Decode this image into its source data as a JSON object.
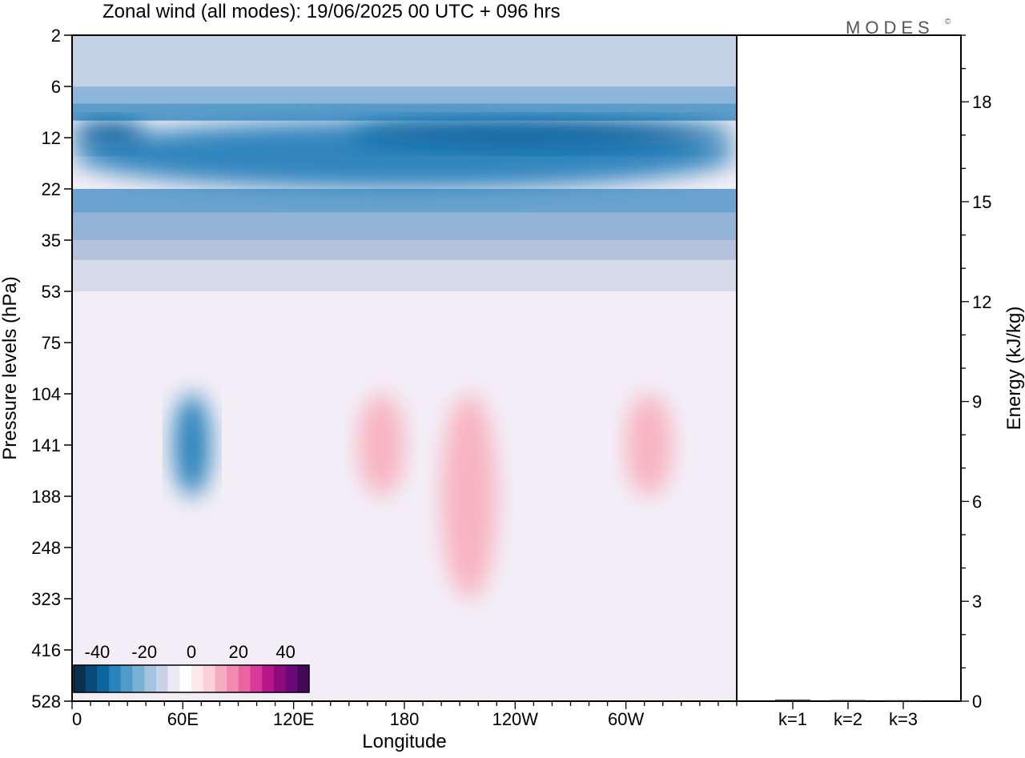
{
  "chart_data": [
    {
      "type": "heatmap",
      "title": "Zonal wind (all modes):  19/06/2025  00 UTC  + 096 hrs",
      "xlabel": "Longitude",
      "ylabel": "Pressure levels (hPa)",
      "x_ticks": [
        "0",
        "60E",
        "120E",
        "180",
        "120W",
        "60W"
      ],
      "x_tick_values": [
        0,
        60,
        120,
        180,
        240,
        300
      ],
      "xlim": [
        0,
        360
      ],
      "y_ticks": [
        "2",
        "6",
        "12",
        "22",
        "35",
        "53",
        "75",
        "104",
        "141",
        "188",
        "248",
        "323",
        "416",
        "528"
      ],
      "y_scale": "categorical pressure levels, top to bottom",
      "colorbar": {
        "ticks": [
          "-40",
          "-20",
          "0",
          "20",
          "40"
        ],
        "tick_values": [
          -40,
          -20,
          0,
          20,
          40
        ],
        "range": [
          -50,
          50
        ],
        "step": 5,
        "colors": [
          "#0c2f4f",
          "#084a7a",
          "#0b65a0",
          "#2a83bb",
          "#4f9bc9",
          "#79b1d5",
          "#a4c3de",
          "#c9d2e6",
          "#ecebf4",
          "#fefefe",
          "#fde9ea",
          "#fbd0d6",
          "#f7adbe",
          "#f28ab0",
          "#ea63a3",
          "#d73a98",
          "#b8168a",
          "#8f0a7c",
          "#6a0877",
          "#440858"
        ],
        "location": "bottom-left"
      },
      "fields": [
        {
          "lon_range": [
            0,
            360
          ],
          "level_range": [
            "10",
            "22"
          ],
          "value": -30,
          "color": "#3385be"
        },
        {
          "lon_range": [
            0,
            40
          ],
          "level_range": [
            "10",
            "14"
          ],
          "value": -40,
          "color": "#0b65a0"
        },
        {
          "lon_range": [
            150,
            360
          ],
          "level_range": [
            "10",
            "14"
          ],
          "value": -40,
          "color": "#0b65a0"
        },
        {
          "lon_range": [
            55,
            75
          ],
          "level_range": [
            "104",
            "188"
          ],
          "value": -30,
          "color": "#2a83bb"
        },
        {
          "lon_range": [
            155,
            180
          ],
          "level_range": [
            "104",
            "188"
          ],
          "value": 12,
          "color": "#f8b3c0"
        },
        {
          "lon_range": [
            200,
            230
          ],
          "level_range": [
            "104",
            "323"
          ],
          "value": 12,
          "color": "#f8b3c0"
        },
        {
          "lon_range": [
            300,
            325
          ],
          "level_range": [
            "104",
            "188"
          ],
          "value": 12,
          "color": "#f8b3c0"
        }
      ]
    },
    {
      "type": "bar",
      "categories": [
        "k=1",
        "k=2",
        "k=3"
      ],
      "values": [
        0.02,
        0.01,
        0.005
      ],
      "ylabel": "Energy (kJ/kg)",
      "ylim": [
        0,
        20
      ],
      "y_ticks": [
        "0",
        "3",
        "6",
        "9",
        "12",
        "15",
        "18"
      ],
      "y_tick_values": [
        0,
        3,
        6,
        9,
        12,
        15,
        18
      ],
      "y_minor_step": 1
    }
  ],
  "brand": {
    "logo_text": "MODES",
    "logo_mark": "©"
  }
}
